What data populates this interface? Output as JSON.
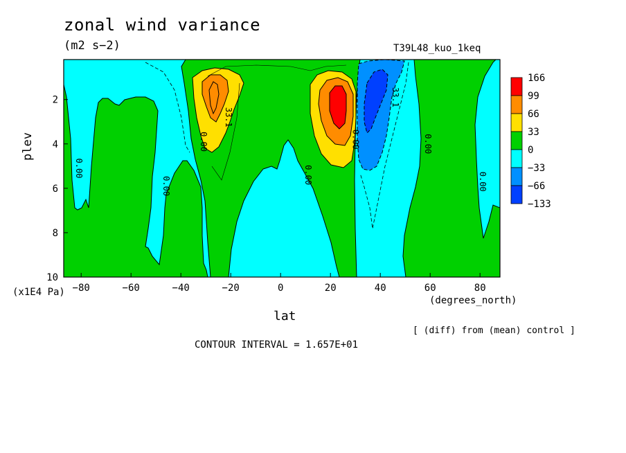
{
  "chart_data": {
    "type": "heatmap",
    "title": "zonal wind variance",
    "subtitle": "(m2 s−2)",
    "experiment": "T39L48_kuo_1keq",
    "xlabel": "lat",
    "xunit": "(degrees_north)",
    "ylabel": "plev",
    "yunit": "(x1E4 Pa)",
    "xlim": [
      -87,
      88
    ],
    "ylim": [
      10,
      0.2
    ],
    "x_ticks": [
      -80,
      -60,
      -40,
      -20,
      0,
      20,
      40,
      60,
      80
    ],
    "x_tick_labels": [
      "−80",
      "−60",
      "−40",
      "−20",
      "0",
      "20",
      "40",
      "60",
      "80"
    ],
    "y_ticks": [
      2,
      4,
      6,
      8,
      10
    ],
    "y_tick_labels": [
      "2",
      "4",
      "6",
      "8",
      "10"
    ],
    "colorbar": {
      "labels": [
        "166",
        "99",
        "66",
        "33",
        "0",
        "−33",
        "−66",
        "−133"
      ],
      "colors": [
        "#ff0000",
        "#ff8c00",
        "#ffe000",
        "#00d000",
        "#00ffff",
        "#0090ff",
        "#0040ff"
      ]
    },
    "contour_labels": [
      {
        "text": "0.00",
        "x": -82,
        "y": 5.1
      },
      {
        "text": "0.00",
        "x": -47,
        "y": 5.9
      },
      {
        "text": "0.00",
        "x": -32,
        "y": 3.9
      },
      {
        "text": "33.1",
        "x": -22,
        "y": 2.8
      },
      {
        "text": "0.00",
        "x": 10,
        "y": 5.4
      },
      {
        "text": "0.00",
        "x": 29,
        "y": 3.8
      },
      {
        "text": "33.1",
        "x": 45,
        "y": 1.9
      },
      {
        "text": "0.00",
        "x": 58,
        "y": 4.0
      },
      {
        "text": "0.00",
        "x": 80,
        "y": 5.7
      }
    ],
    "extrema": [
      {
        "x": -28,
        "y": 1.5,
        "value": "max",
        "color_level": "66-99"
      },
      {
        "x": 23,
        "y": 2.1,
        "value": "max",
        "color_level": "99-166"
      },
      {
        "x": 38,
        "y": 2.2,
        "value": "min",
        "color_level": "-133--66"
      }
    ],
    "footer_left": "CONTOUR INTERVAL = 1.657E+01",
    "footer_right": "[ (diff) from (mean) control ]"
  }
}
